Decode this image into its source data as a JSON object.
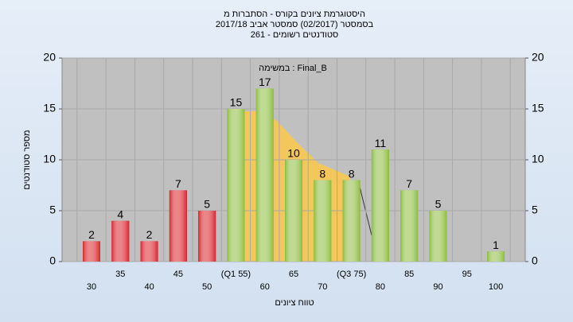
{
  "chart_data": {
    "type": "bar",
    "title": "היסטוגרמת ציונים בקורס - הסתברות מ",
    "subtitle": "בסמסטר  (02/2017)  סמסטר אביב 2017/18",
    "subtitle2": "סטודנטים רשומים - 261",
    "annotation": "במשימה : Final_B",
    "y_label": "מספר סטודנטים",
    "x_label": "טווח ציונים",
    "categories": [
      "30",
      "35",
      "40",
      "45",
      "50",
      "(Q1 55)",
      "60",
      "65",
      "70",
      "(Q3 75)",
      "80",
      "85",
      "90",
      "95",
      "100"
    ],
    "values": [
      2,
      4,
      2,
      7,
      5,
      15,
      17,
      10,
      8,
      8,
      11,
      7,
      5,
      null,
      1
    ],
    "colors": [
      "#d8222a",
      "#d8222a",
      "#d8222a",
      "#d8222a",
      "#d8222a",
      "#8cbc3c",
      "#8cbc3c",
      "#8cbc3c",
      "#8cbc3c",
      "#8cbc3c",
      "#8cbc3c",
      "#8cbc3c",
      "#8cbc3c",
      "#8cbc3c",
      "#8cbc3c"
    ],
    "ylim": [
      0,
      20
    ],
    "yticks": [
      0,
      5,
      10,
      15,
      20
    ],
    "y2lim": [
      0,
      20
    ],
    "y2ticks": [
      0,
      5,
      10,
      15,
      20
    ],
    "grid": true
  }
}
